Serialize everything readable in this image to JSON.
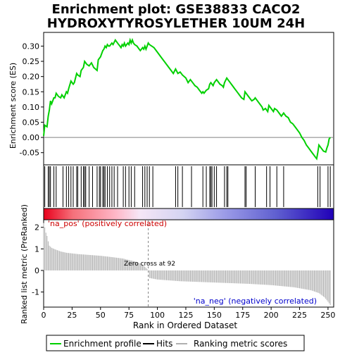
{
  "title_line1": "Enrichment plot: GSE38833 CACO2",
  "title_line2": "HYDROXYTYROSYLETHER 10UM 24H",
  "colors": {
    "es_line": "#00d000",
    "hits": "#000000",
    "metric": "#b0b0b0",
    "pos_label": "#cc0000",
    "neg_label": "#0000cc"
  },
  "chart_data": [
    {
      "type": "line",
      "panel": "enrichment-profile",
      "ylabel": "Enrichment score (ES)",
      "xlim": [
        0,
        255
      ],
      "ylim": [
        -0.09,
        0.345
      ],
      "yticks": [
        -0.05,
        0.0,
        0.05,
        0.1,
        0.15,
        0.2,
        0.25,
        0.3
      ],
      "ytick_labels": [
        "-0.05",
        "0.00",
        "0.05",
        "0.10",
        "0.15",
        "0.20",
        "0.25",
        "0.30"
      ],
      "series": [
        {
          "name": "Enrichment profile",
          "points": [
            [
              0,
              0.005
            ],
            [
              1,
              0.04
            ],
            [
              3,
              0.035
            ],
            [
              4,
              0.07
            ],
            [
              5,
              0.09
            ],
            [
              6,
              0.12
            ],
            [
              7,
              0.11
            ],
            [
              9,
              0.13
            ],
            [
              10,
              0.13
            ],
            [
              11,
              0.145
            ],
            [
              13,
              0.135
            ],
            [
              15,
              0.13
            ],
            [
              16,
              0.14
            ],
            [
              18,
              0.13
            ],
            [
              20,
              0.15
            ],
            [
              21,
              0.145
            ],
            [
              22,
              0.16
            ],
            [
              24,
              0.185
            ],
            [
              26,
              0.175
            ],
            [
              27,
              0.18
            ],
            [
              29,
              0.21
            ],
            [
              30,
              0.205
            ],
            [
              32,
              0.2
            ],
            [
              33,
              0.22
            ],
            [
              35,
              0.23
            ],
            [
              36,
              0.25
            ],
            [
              38,
              0.24
            ],
            [
              40,
              0.235
            ],
            [
              42,
              0.245
            ],
            [
              44,
              0.23
            ],
            [
              47,
              0.22
            ],
            [
              48,
              0.255
            ],
            [
              50,
              0.265
            ],
            [
              52,
              0.285
            ],
            [
              53,
              0.29
            ],
            [
              54,
              0.3
            ],
            [
              55,
              0.295
            ],
            [
              56,
              0.305
            ],
            [
              57,
              0.3
            ],
            [
              58,
              0.3
            ],
            [
              60,
              0.31
            ],
            [
              61,
              0.305
            ],
            [
              63,
              0.32
            ],
            [
              64,
              0.315
            ],
            [
              66,
              0.305
            ],
            [
              67,
              0.3
            ],
            [
              68,
              0.295
            ],
            [
              69,
              0.305
            ],
            [
              70,
              0.3
            ],
            [
              71,
              0.31
            ],
            [
              72,
              0.3
            ],
            [
              74,
              0.31
            ],
            [
              75,
              0.305
            ],
            [
              76,
              0.32
            ],
            [
              77,
              0.31
            ],
            [
              78,
              0.32
            ],
            [
              79,
              0.31
            ],
            [
              80,
              0.305
            ],
            [
              82,
              0.3
            ],
            [
              84,
              0.29
            ],
            [
              85,
              0.285
            ],
            [
              86,
              0.29
            ],
            [
              87,
              0.295
            ],
            [
              88,
              0.29
            ],
            [
              89,
              0.3
            ],
            [
              90,
              0.29
            ],
            [
              92,
              0.31
            ],
            [
              93,
              0.305
            ],
            [
              95,
              0.3
            ],
            [
              97,
              0.295
            ],
            [
              100,
              0.28
            ],
            [
              103,
              0.265
            ],
            [
              106,
              0.25
            ],
            [
              109,
              0.235
            ],
            [
              112,
              0.22
            ],
            [
              114,
              0.21
            ],
            [
              116,
              0.225
            ],
            [
              118,
              0.21
            ],
            [
              120,
              0.215
            ],
            [
              122,
              0.205
            ],
            [
              125,
              0.195
            ],
            [
              127,
              0.18
            ],
            [
              129,
              0.19
            ],
            [
              131,
              0.18
            ],
            [
              133,
              0.17
            ],
            [
              135,
              0.165
            ],
            [
              137,
              0.155
            ],
            [
              139,
              0.145
            ],
            [
              140,
              0.15
            ],
            [
              141,
              0.145
            ],
            [
              143,
              0.155
            ],
            [
              145,
              0.16
            ],
            [
              146,
              0.175
            ],
            [
              147,
              0.18
            ],
            [
              148,
              0.175
            ],
            [
              149,
              0.17
            ],
            [
              150,
              0.18
            ],
            [
              152,
              0.19
            ],
            [
              153,
              0.185
            ],
            [
              155,
              0.175
            ],
            [
              157,
              0.17
            ],
            [
              158,
              0.165
            ],
            [
              159,
              0.18
            ],
            [
              161,
              0.195
            ],
            [
              162,
              0.19
            ],
            [
              164,
              0.18
            ],
            [
              166,
              0.17
            ],
            [
              168,
              0.16
            ],
            [
              170,
              0.15
            ],
            [
              172,
              0.14
            ],
            [
              174,
              0.13
            ],
            [
              176,
              0.125
            ],
            [
              177,
              0.15
            ],
            [
              179,
              0.14
            ],
            [
              181,
              0.13
            ],
            [
              183,
              0.12
            ],
            [
              185,
              0.125
            ],
            [
              186,
              0.13
            ],
            [
              188,
              0.12
            ],
            [
              190,
              0.11
            ],
            [
              192,
              0.1
            ],
            [
              193,
              0.09
            ],
            [
              195,
              0.095
            ],
            [
              197,
              0.085
            ],
            [
              198,
              0.105
            ],
            [
              200,
              0.095
            ],
            [
              202,
              0.085
            ],
            [
              203,
              0.095
            ],
            [
              205,
              0.09
            ],
            [
              207,
              0.08
            ],
            [
              209,
              0.07
            ],
            [
              211,
              0.08
            ],
            [
              213,
              0.07
            ],
            [
              215,
              0.065
            ],
            [
              217,
              0.05
            ],
            [
              219,
              0.045
            ],
            [
              221,
              0.035
            ],
            [
              223,
              0.025
            ],
            [
              225,
              0.015
            ],
            [
              227,
              0.0
            ],
            [
              229,
              -0.01
            ],
            [
              231,
              -0.025
            ],
            [
              233,
              -0.035
            ],
            [
              235,
              -0.045
            ],
            [
              237,
              -0.055
            ],
            [
              239,
              -0.065
            ],
            [
              240,
              -0.07
            ],
            [
              241,
              -0.05
            ],
            [
              242,
              -0.025
            ],
            [
              244,
              -0.035
            ],
            [
              246,
              -0.045
            ],
            [
              248,
              -0.048
            ],
            [
              249,
              -0.035
            ],
            [
              250,
              -0.025
            ],
            [
              251,
              -0.005
            ],
            [
              252,
              0.0
            ]
          ]
        }
      ]
    },
    {
      "type": "scatter",
      "panel": "hits",
      "series": [
        {
          "name": "Hits",
          "x": [
            1,
            4,
            5,
            6,
            9,
            11,
            17,
            20,
            22,
            24,
            26,
            29,
            30,
            33,
            35,
            36,
            37,
            40,
            43,
            47,
            49,
            50,
            52,
            53,
            54,
            56,
            58,
            60,
            62,
            65,
            70,
            72,
            75,
            77,
            80,
            87,
            89,
            91,
            93,
            96,
            116,
            118,
            122,
            130,
            140,
            143,
            146,
            147,
            148,
            150,
            152,
            159,
            161,
            162,
            177,
            178,
            186,
            196,
            199,
            205,
            211,
            241,
            243,
            250,
            252
          ]
        }
      ]
    },
    {
      "type": "area",
      "panel": "ranked-list-metric",
      "ylabel": "Ranked list metric (PreRanked)",
      "xlabel": "Rank in Ordered Dataset",
      "xlim": [
        0,
        255
      ],
      "ylim": [
        -1.7,
        2.35
      ],
      "xticks": [
        0,
        25,
        50,
        75,
        100,
        125,
        150,
        175,
        200,
        225,
        250
      ],
      "xtick_labels": [
        "0",
        "25",
        "50",
        "75",
        "100",
        "125",
        "150",
        "175",
        "200",
        "225",
        "250"
      ],
      "yticks": [
        -1,
        0,
        1,
        2
      ],
      "ytick_labels": [
        "-1",
        "0",
        "1",
        "2"
      ],
      "zero_cross": 92,
      "series": [
        {
          "name": "Ranking metric scores",
          "points": [
            [
              0,
              2.2
            ],
            [
              1,
              2.0
            ],
            [
              2,
              1.75
            ],
            [
              3,
              1.6
            ],
            [
              4,
              1.35
            ],
            [
              5,
              1.15
            ],
            [
              7,
              1.05
            ],
            [
              10,
              0.98
            ],
            [
              15,
              0.88
            ],
            [
              20,
              0.82
            ],
            [
              30,
              0.76
            ],
            [
              40,
              0.72
            ],
            [
              50,
              0.68
            ],
            [
              60,
              0.62
            ],
            [
              70,
              0.55
            ],
            [
              80,
              0.42
            ],
            [
              86,
              0.3
            ],
            [
              90,
              0.12
            ],
            [
              92,
              0.0
            ],
            [
              93,
              -0.35
            ],
            [
              100,
              -0.42
            ],
            [
              120,
              -0.5
            ],
            [
              150,
              -0.56
            ],
            [
              180,
              -0.62
            ],
            [
              200,
              -0.68
            ],
            [
              220,
              -0.78
            ],
            [
              235,
              -0.92
            ],
            [
              242,
              -1.05
            ],
            [
              247,
              -1.25
            ],
            [
              250,
              -1.45
            ],
            [
              252,
              -1.6
            ]
          ]
        }
      ]
    }
  ],
  "annotations": {
    "pos_label": "'na_pos' (positively correlated)",
    "neg_label": "'na_neg' (negatively correlated)",
    "zero_cross_text": "Zero cross at 92"
  },
  "legend": [
    {
      "label": "Enrichment profile",
      "color": "#00d000"
    },
    {
      "label": "Hits",
      "color": "#000000"
    },
    {
      "label": "Ranking metric scores",
      "color": "#b0b0b0"
    }
  ]
}
